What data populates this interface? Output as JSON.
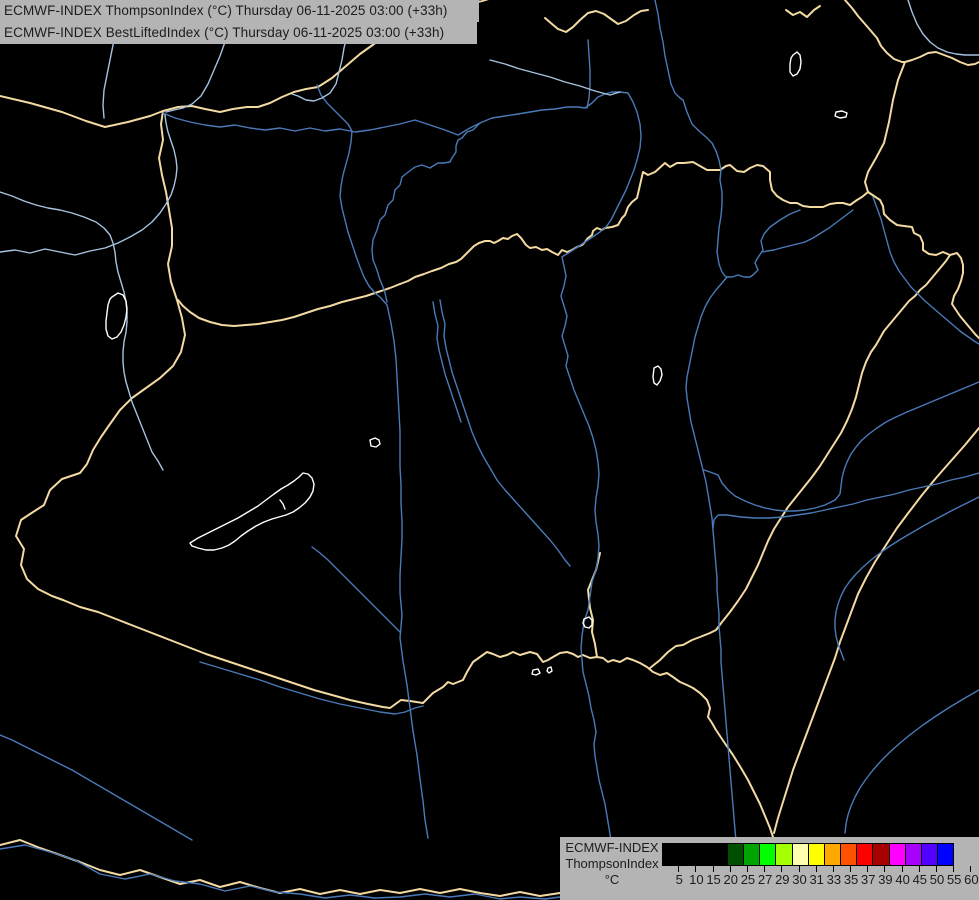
{
  "header": {
    "line1": "ECMWF-INDEX ThompsonIndex (°C) Thursday 06-11-2025 03:00 (+33h)",
    "line2": "ECMWF-INDEX BestLiftedIndex (°C) Thursday 06-11-2025 03:00 (+33h)"
  },
  "legend": {
    "title_line1": "ECMWF-INDEX",
    "title_line2": "ThompsonIndex",
    "unit": "°C",
    "stops": [
      {
        "label": "5",
        "color": "#000000"
      },
      {
        "label": "10",
        "color": "#000000"
      },
      {
        "label": "15",
        "color": "#000000"
      },
      {
        "label": "20",
        "color": "#000000"
      },
      {
        "label": "25",
        "color": "#004f00"
      },
      {
        "label": "27",
        "color": "#00a400"
      },
      {
        "label": "29",
        "color": "#00ff00"
      },
      {
        "label": "30",
        "color": "#a4ff00"
      },
      {
        "label": "31",
        "color": "#ffffb0"
      },
      {
        "label": "33",
        "color": "#ffff00"
      },
      {
        "label": "35",
        "color": "#ffa800"
      },
      {
        "label": "37",
        "color": "#ff5200"
      },
      {
        "label": "39",
        "color": "#ff0000"
      },
      {
        "label": "40",
        "color": "#a80000"
      },
      {
        "label": "45",
        "color": "#ff00ff"
      },
      {
        "label": "50",
        "color": "#a800ff"
      },
      {
        "label": "55",
        "color": "#5200ff"
      },
      {
        "label": "60",
        "color": "#0000ff"
      }
    ]
  },
  "colors": {
    "map-bg": "#000000",
    "panel-bg": "#b4b4b4",
    "panel-text": "#1c1c1c",
    "border-line": "#f3d9a2",
    "river-line": "#4a7ab8",
    "river-light": "#a6c3e0",
    "lake-line": "#ffffff"
  }
}
